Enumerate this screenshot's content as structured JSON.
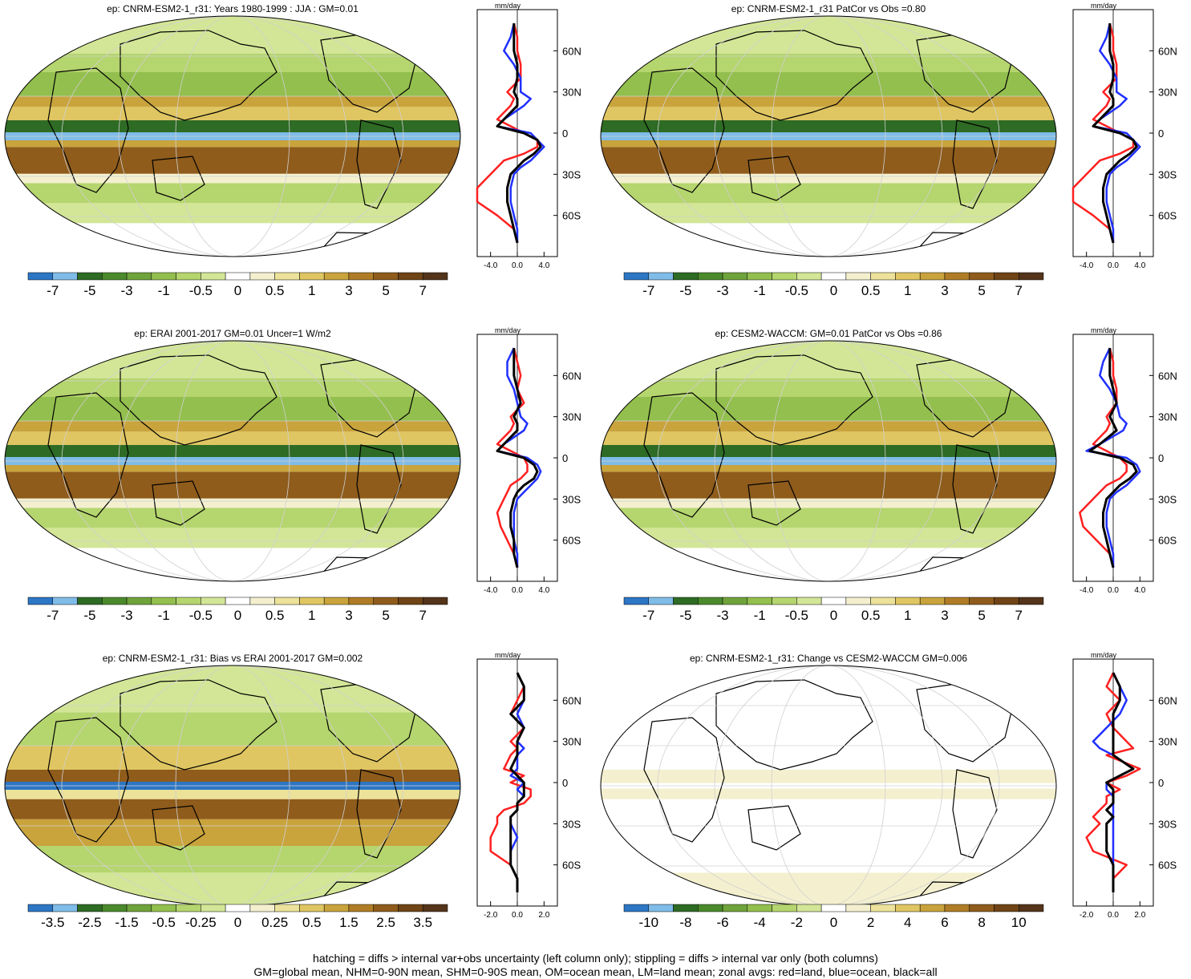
{
  "palette": [
    "#2c76c5",
    "#7fbce8",
    "#2e6b24",
    "#4b8a2c",
    "#6fa33b",
    "#93bf4e",
    "#b5d56e",
    "#d3e697",
    "#ffffff",
    "#f4f0cf",
    "#ece29a",
    "#dfc662",
    "#c9a33c",
    "#b07d26",
    "#8f5c1c",
    "#6f4416",
    "#54341a"
  ],
  "chart_data": [
    {
      "type": "heatmap",
      "name": "map-a",
      "title": "ep: CNRM-ESM2-1_r31: Years 1980-1999 : JJA : GM=0.01",
      "colorbar": [
        "-7",
        "-5",
        "-3",
        "-1",
        "-0.5",
        "0",
        "0.5",
        "1",
        "3",
        "5",
        "7"
      ],
      "zonal": {
        "unit": "mm/day",
        "xticks": [
          "-4.0",
          "0.0",
          "4.0"
        ],
        "xlim": [
          -6,
          6
        ],
        "yticks": [
          "60N",
          "30N",
          "0",
          "30S",
          "60S"
        ],
        "ylim": [
          -90,
          90
        ],
        "lat": [
          80,
          70,
          60,
          50,
          40,
          30,
          25,
          20,
          10,
          5,
          0,
          -5,
          -10,
          -15,
          -20,
          -25,
          -30,
          -40,
          -50,
          -60,
          -70,
          -80
        ],
        "land": [
          -0.5,
          0,
          0,
          0.5,
          0.5,
          -1.5,
          -0.5,
          -1,
          -3,
          -1,
          1,
          3,
          3,
          1,
          -2,
          -3,
          -4,
          -6,
          -6,
          -3,
          -0.5,
          0
        ],
        "ocean": [
          -0.5,
          -1,
          -2,
          -0.5,
          0.5,
          0.5,
          2,
          1,
          -2,
          -3,
          2,
          3,
          4,
          3,
          2,
          0.5,
          -0.5,
          -1,
          -1,
          -0.5,
          0,
          0
        ],
        "all": [
          -0.5,
          -0.5,
          -0.5,
          0,
          0,
          -0.5,
          0,
          0,
          -2,
          -3,
          1,
          3,
          3.5,
          2.5,
          1,
          0,
          -1,
          -1.5,
          -1.5,
          -1,
          -0.5,
          0
        ]
      }
    },
    {
      "type": "heatmap",
      "name": "map-b",
      "title": "ep: CNRM-ESM2-1_r31 PatCor vs Obs =0.80",
      "colorbar": [
        "-7",
        "-5",
        "-3",
        "-1",
        "-0.5",
        "0",
        "0.5",
        "1",
        "3",
        "5",
        "7"
      ],
      "zonal": {
        "unit": "mm/day",
        "xticks": [
          "-4.0",
          "0.0",
          "4.0"
        ],
        "xlim": [
          -6,
          6
        ],
        "yticks": [
          "60N",
          "30N",
          "0",
          "30S",
          "60S"
        ],
        "ylim": [
          -90,
          90
        ],
        "lat": [
          80,
          70,
          60,
          50,
          40,
          30,
          25,
          20,
          10,
          5,
          0,
          -5,
          -10,
          -15,
          -20,
          -25,
          -30,
          -40,
          -50,
          -60,
          -70,
          -80
        ],
        "land": [
          -0.5,
          0,
          0,
          0.5,
          0.5,
          -1.5,
          -0.5,
          -1,
          -3,
          -1,
          1,
          3,
          3,
          1,
          -2,
          -3,
          -4,
          -6,
          -6,
          -3,
          -0.5,
          0
        ],
        "ocean": [
          -0.5,
          -1,
          -2,
          -0.5,
          0.5,
          0.5,
          2,
          1,
          -2,
          -3,
          2,
          3,
          4,
          3,
          2,
          0.5,
          -0.5,
          -1,
          -1,
          -0.5,
          0,
          0
        ],
        "all": [
          -0.5,
          -0.5,
          -0.5,
          0,
          0,
          -0.5,
          0,
          0,
          -2,
          -3,
          1,
          3,
          3.5,
          2.5,
          1,
          0,
          -1,
          -1.5,
          -1.5,
          -1,
          -0.5,
          0
        ]
      }
    },
    {
      "type": "heatmap",
      "name": "map-c",
      "title": "ep: ERAI 2001-2017 GM=0.01 Uncer=1 W/m2",
      "colorbar": [
        "-7",
        "-5",
        "-3",
        "-1",
        "-0.5",
        "0",
        "0.5",
        "1",
        "3",
        "5",
        "7"
      ],
      "zonal": {
        "unit": "mm/day",
        "xticks": [
          "-4.0",
          "0.0",
          "4.0"
        ],
        "xlim": [
          -6,
          6
        ],
        "yticks": [
          "60N",
          "30N",
          "0",
          "30S",
          "60S"
        ],
        "ylim": [
          -90,
          90
        ],
        "lat": [
          80,
          70,
          60,
          50,
          40,
          30,
          25,
          20,
          10,
          5,
          0,
          -5,
          -10,
          -15,
          -20,
          -25,
          -30,
          -40,
          -50,
          -60,
          -70,
          -80
        ],
        "land": [
          -0.5,
          0,
          0.5,
          0,
          1,
          -1,
          -0.5,
          -1,
          -3,
          -1,
          1,
          1.5,
          1.5,
          0.5,
          -1,
          -1.5,
          -2,
          -3,
          -2.5,
          -1.5,
          -0.5,
          0
        ],
        "ocean": [
          -0.5,
          -1.5,
          -1.5,
          -0.5,
          0,
          0.5,
          1.5,
          1,
          -2,
          -3,
          1.5,
          3,
          3.5,
          3,
          2,
          1,
          0,
          -0.5,
          -0.5,
          -0.5,
          0,
          0
        ],
        "all": [
          -0.5,
          -0.5,
          -0.5,
          0,
          0.5,
          -0.5,
          0,
          0,
          -2,
          -3,
          1,
          2.5,
          3,
          2.5,
          1,
          0,
          -0.5,
          -1,
          -1,
          -0.5,
          -0.5,
          0
        ]
      }
    },
    {
      "type": "heatmap",
      "name": "map-d",
      "title": "ep: CESM2-WACCM: GM=0.01 PatCor vs Obs =0.86",
      "colorbar": [
        "-7",
        "-5",
        "-3",
        "-1",
        "-0.5",
        "0",
        "0.5",
        "1",
        "3",
        "5",
        "7"
      ],
      "zonal": {
        "unit": "mm/day",
        "xticks": [
          "-4.0",
          "0.0",
          "4.0"
        ],
        "xlim": [
          -6,
          6
        ],
        "yticks": [
          "60N",
          "30N",
          "0",
          "30S",
          "60S"
        ],
        "ylim": [
          -90,
          90
        ],
        "lat": [
          80,
          70,
          60,
          50,
          40,
          30,
          25,
          20,
          10,
          5,
          0,
          -5,
          -10,
          -15,
          -20,
          -25,
          -30,
          -40,
          -50,
          -60,
          -70,
          -80
        ],
        "land": [
          -0.5,
          0,
          0,
          0.5,
          0.5,
          -1,
          -0.5,
          -1,
          -3,
          -1,
          1,
          2,
          2,
          1,
          -1,
          -2,
          -3,
          -5,
          -4.5,
          -2.5,
          -0.5,
          0
        ],
        "ocean": [
          -0.5,
          -1.5,
          -2,
          -0.5,
          0.5,
          1,
          2,
          1.5,
          -2,
          -4,
          2,
          3.5,
          4,
          3,
          2,
          0.5,
          -0.5,
          -1,
          -1,
          -0.5,
          0,
          0
        ],
        "all": [
          -0.5,
          -0.5,
          -0.5,
          0,
          0.5,
          -0.5,
          0,
          0.5,
          -2,
          -3.5,
          1,
          3,
          3.5,
          2.5,
          1,
          0,
          -1,
          -1.5,
          -1.5,
          -1,
          -0.5,
          0
        ]
      }
    },
    {
      "type": "heatmap",
      "name": "map-e",
      "title": "ep: CNRM-ESM2-1_r31: Bias vs ERAI 2001-2017 GM=0.002",
      "colorbar": [
        "-3.5",
        "-2.5",
        "-1.5",
        "-0.5",
        "-0.25",
        "0",
        "0.25",
        "0.5",
        "1.5",
        "2.5",
        "3.5"
      ],
      "zonal": {
        "unit": "mm/day",
        "xticks": [
          "-2.0",
          "0.0",
          "2.0"
        ],
        "xlim": [
          -3,
          3
        ],
        "yticks": [
          "60N",
          "30N",
          "0",
          "30S",
          "60S"
        ],
        "ylim": [
          -90,
          90
        ],
        "lat": [
          80,
          70,
          60,
          50,
          40,
          30,
          25,
          20,
          10,
          5,
          0,
          -5,
          -10,
          -15,
          -20,
          -25,
          -30,
          -40,
          -50,
          -60,
          -70,
          -80
        ],
        "land": [
          0,
          0.5,
          0,
          -0.5,
          0.5,
          -0.5,
          0,
          -0.5,
          -1,
          0.5,
          -0.5,
          1,
          1,
          0.5,
          -1,
          -1.5,
          -1.5,
          -2,
          -2,
          -0.5,
          0,
          0
        ],
        "ocean": [
          0,
          0.5,
          0.5,
          0,
          0.5,
          0,
          0.5,
          0,
          0,
          -0.5,
          0.5,
          0,
          0.5,
          0,
          0,
          -0.5,
          -0.5,
          0,
          -0.5,
          -0.5,
          0,
          0
        ],
        "all": [
          0,
          0.5,
          0.5,
          -0.5,
          0.5,
          0,
          0,
          0,
          -0.5,
          0,
          0.5,
          0.5,
          0.5,
          0,
          0,
          -0.5,
          -0.5,
          -0.5,
          -0.5,
          -0.5,
          0,
          0
        ]
      }
    },
    {
      "type": "heatmap",
      "name": "map-f",
      "title": "ep: CNRM-ESM2-1_r31: Change vs CESM2-WACCM GM=0.006",
      "colorbar": [
        "-10",
        "-8",
        "-6",
        "-4",
        "-2",
        "0",
        "2",
        "4",
        "6",
        "8",
        "10"
      ],
      "zonal": {
        "unit": "mm/day",
        "xticks": [
          "-2.0",
          "0.0",
          "2.0"
        ],
        "xlim": [
          -3,
          3
        ],
        "yticks": [
          "60N",
          "30N",
          "0",
          "30S",
          "60S"
        ],
        "ylim": [
          -90,
          90
        ],
        "lat": [
          80,
          70,
          60,
          50,
          40,
          30,
          25,
          20,
          10,
          5,
          0,
          -5,
          -10,
          -15,
          -20,
          -25,
          -30,
          -40,
          -50,
          -60,
          -70,
          -80
        ],
        "land": [
          0,
          -0.5,
          0.5,
          -0.5,
          0,
          1,
          1.5,
          -0.5,
          2,
          1,
          -0.5,
          0.5,
          -0.5,
          -0.5,
          -1,
          -1.5,
          -1,
          -2,
          -1.5,
          1,
          0,
          0
        ],
        "ocean": [
          0,
          0.5,
          1,
          0.5,
          -0.5,
          -1.5,
          -1,
          0,
          1.5,
          0.5,
          -0.5,
          -0.5,
          0,
          0,
          0,
          0,
          0,
          0,
          0,
          0,
          0,
          0
        ],
        "all": [
          0,
          0.5,
          0.5,
          0,
          0,
          0,
          0,
          0,
          1.5,
          0.5,
          -0.5,
          0,
          0,
          0,
          -0.5,
          0,
          -0.5,
          -0.5,
          -0.5,
          0,
          0,
          0
        ]
      }
    }
  ],
  "footer": {
    "line1": "hatching = diffs > internal var+obs uncertainty (left column only); stippling = diffs > internal var only (both columns)",
    "line2": "GM=global mean, NHM=0-90N mean, SHM=0-90S mean, OM=ocean mean, LM=land mean; zonal avgs: red=land, blue=ocean, black=all"
  }
}
